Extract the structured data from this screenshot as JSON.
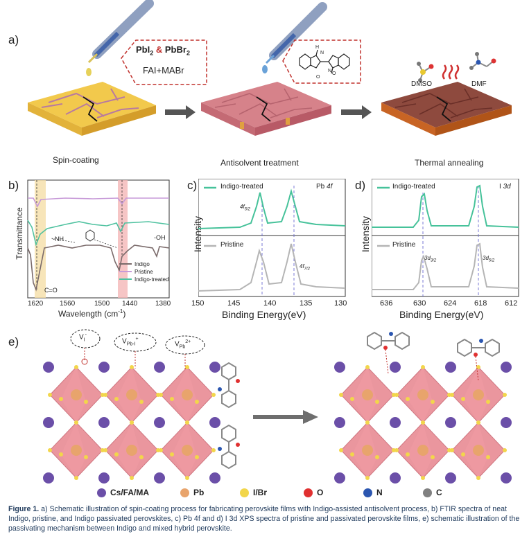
{
  "panel_a": {
    "letter": "a)",
    "step1": "Spin-coating",
    "step2": "Antisolvent treatment",
    "step3": "Thermal annealing",
    "precursor_pbi2": "PbI",
    "precursor_pbbr2": "PbBr",
    "precursor_amp": "&",
    "precursor_sub": "2",
    "precursor_line2": "FAI+MABr",
    "solvent_dmso": "DMSO",
    "solvent_dmf": "DMF"
  },
  "panel_b": {
    "letter": "b)",
    "ylabel": "Transmittance",
    "xlabel": "Wavelength (cm",
    "xlabel_sup": "-1",
    "xlabel_end": ")",
    "ticks": [
      "1620",
      "1560",
      "1500",
      "1440",
      "1380"
    ],
    "ann_nh": "-NH",
    "ann_oh": "-OH",
    "ann_co": "C=O",
    "legend": [
      "Indigo",
      "Pristine",
      "Indigo-treated"
    ]
  },
  "panel_c": {
    "letter": "c)",
    "ylabel": "Intensity",
    "xlabel": "Binding Energy(eV)",
    "ticks": [
      "150",
      "145",
      "140",
      "135",
      "130"
    ],
    "title_pre": "Pb ",
    "title_it": "4f",
    "series_top": "Indigo-treated",
    "series_bottom": "Pristine",
    "peak1_main": "4f",
    "peak1_sub": "5/2",
    "peak2_main": "4f",
    "peak2_sub": "7/2"
  },
  "panel_d": {
    "letter": "d)",
    "ylabel": "Intensity",
    "xlabel": "Binding Energy(eV)",
    "ticks": [
      "636",
      "630",
      "624",
      "618",
      "612"
    ],
    "title_pre": "I ",
    "title_it": "3d",
    "series_top": "Indigo-treated",
    "series_bottom": "Pristine",
    "peak1_main": "3d",
    "peak1_sub": "3/2",
    "peak2_main": "3d",
    "peak2_sub": "5/2"
  },
  "panel_e": {
    "letter": "e)",
    "defect1": "V",
    "defect1_sub": "I",
    "defect1_sup": "-",
    "defect2": "V",
    "defect2_sub": "Pb-I",
    "defect2_sup": "+",
    "defect3": "V",
    "defect3_sub": "Pb",
    "defect3_sup": "2+"
  },
  "atom_legend": [
    {
      "label": "Cs/FA/MA",
      "color": "#6b4fa8"
    },
    {
      "label": "Pb",
      "color": "#e8a46c"
    },
    {
      "label": "I/Br",
      "color": "#f2d64b"
    },
    {
      "label": "O",
      "color": "#e03030"
    },
    {
      "label": "N",
      "color": "#2b56b0"
    },
    {
      "label": "C",
      "color": "#808080"
    }
  ],
  "colors": {
    "indigo": "#7a6a6a",
    "pristine": "#c79ad8",
    "treated": "#4fc2a0",
    "xps_treated": "#46c29a",
    "xps_pristine": "#b5b5b5"
  },
  "caption": {
    "bold": "Figure 1.",
    "text": "a) Schematic illustration of spin-coating process for fabricating perovskite films with Indigo-assisted antisolvent process, b) FTIR spectra of neat Indigo, pristine, and Indigo passivated perovskites, c) Pb 4f and d) I 3d XPS spectra of pristine and passivated perovskite films, e) schematic illustration of the passivating mechanism between Indigo and mixed hybrid perovskite."
  }
}
